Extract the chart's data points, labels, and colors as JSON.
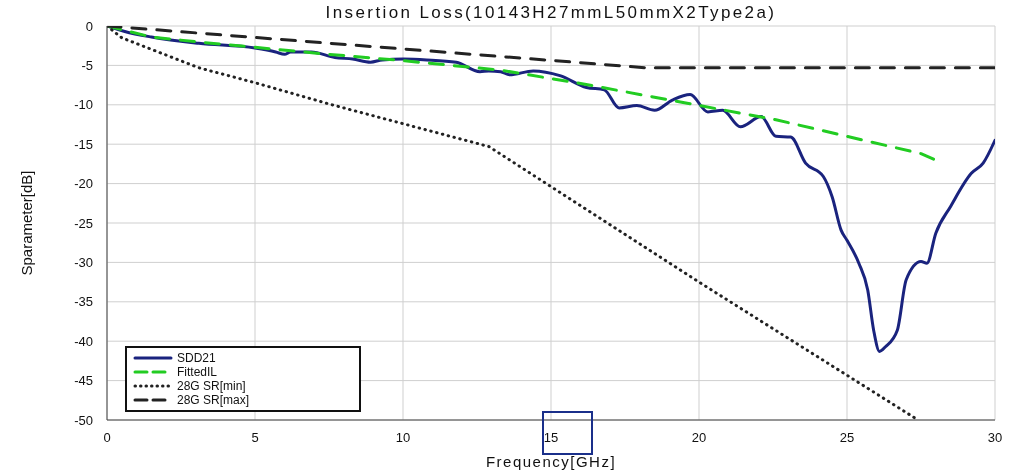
{
  "chart_data": {
    "type": "line",
    "title": "Insertion Loss(10143H27mmL50mmX2Type2a)",
    "xlabel": "Frequency[GHz]",
    "ylabel": "Sparameter[dB]",
    "xlim": [
      0,
      30
    ],
    "xticks": [
      0,
      5,
      10,
      15,
      20,
      25,
      30
    ],
    "ylim": [
      -50,
      0
    ],
    "yticks": [
      -50,
      -45,
      -40,
      -35,
      -30,
      -25,
      -20,
      -15,
      -10,
      -5,
      0
    ],
    "grid": true,
    "legend": "bottom left",
    "series": [
      {
        "name": "SDD21",
        "color": "#1a237e",
        "line_style": "solid",
        "x": [
          0,
          0.6,
          1.5,
          3.1,
          5,
          5.7,
          6,
          6.2,
          6.9,
          7.7,
          8.3,
          8.9,
          9.3,
          10,
          10.8,
          11.8,
          12.6,
          12.9,
          13.3,
          13.6,
          14.4,
          15.3,
          16.2,
          16.8,
          17.3,
          17.9,
          18.5,
          19.1,
          19.7,
          20.3,
          20.8,
          21.4,
          22.1,
          22.6,
          23.1,
          23.6,
          24.2,
          24.5,
          24.8,
          25,
          25.4,
          25.7,
          25.9,
          26.1,
          26.3,
          26.7,
          27,
          27.5,
          27.7,
          28,
          28.5,
          29.2,
          29.6,
          30
        ],
        "values": [
          0,
          -0.7,
          -1.4,
          -2.2,
          -2.8,
          -3.3,
          -3.6,
          -3.3,
          -3.3,
          -4,
          -4.2,
          -4.6,
          -4.3,
          -4.2,
          -4.3,
          -4.6,
          -5.8,
          -5.7,
          -5.8,
          -6.2,
          -5.7,
          -6.3,
          -7.8,
          -8.1,
          -10.4,
          -10.1,
          -10.7,
          -9.4,
          -8.7,
          -10.9,
          -10.7,
          -12.8,
          -11.5,
          -14,
          -14.1,
          -17.4,
          -19.1,
          -21.7,
          -25.9,
          -27.2,
          -30.1,
          -33.5,
          -38.6,
          -41.3,
          -40.7,
          -38.6,
          -32.2,
          -29.9,
          -30.1,
          -26.3,
          -22.9,
          -18.7,
          -17.4,
          -14.5
        ]
      },
      {
        "name": "FittedIL",
        "color": "#22cc22",
        "line_style": "dashed",
        "x": [
          0,
          1.5,
          3,
          5,
          7.2,
          10,
          12.2,
          13.3,
          16,
          19.6,
          22.6,
          25,
          27.5,
          28.1
        ],
        "values": [
          0,
          -1.4,
          -2,
          -2.7,
          -3.5,
          -4.4,
          -5.2,
          -5.6,
          -7.3,
          -9.8,
          -11.9,
          -14,
          -16.2,
          -17.2
        ]
      },
      {
        "name": "28G SR[min]",
        "color": "#222222",
        "line_style": "dotted",
        "x": [
          0,
          0.5,
          3.1,
          5,
          7.6,
          10,
          12.9,
          20,
          27.4
        ],
        "values": [
          0,
          -1.5,
          -5.3,
          -7.2,
          -10,
          -12.4,
          -15.3,
          -32.5,
          -50
        ]
      },
      {
        "name": "28G SR[max]",
        "color": "#222222",
        "line_style": "dashed",
        "x": [
          0,
          18.2,
          30
        ],
        "values": [
          0,
          -5.3,
          -5.3
        ]
      }
    ]
  }
}
